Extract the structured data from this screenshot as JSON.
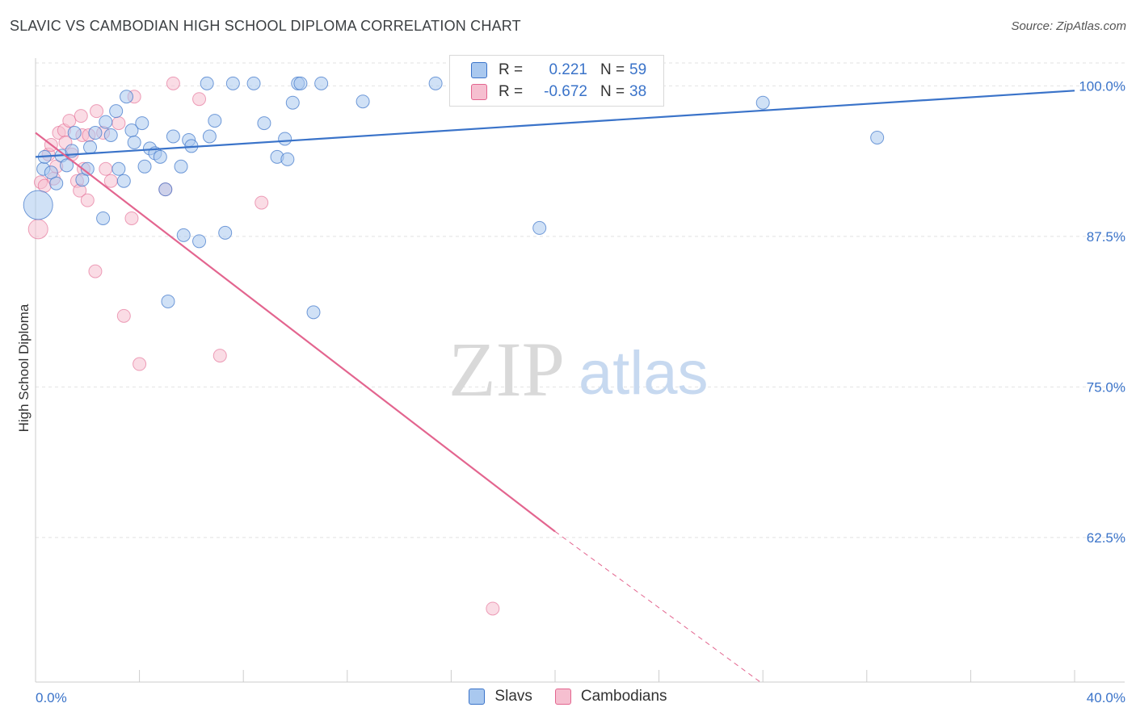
{
  "title": "SLAVIC VS CAMBODIAN HIGH SCHOOL DIPLOMA CORRELATION CHART",
  "source": "Source: ZipAtlas.com",
  "watermark": {
    "zip": "ZIP",
    "atlas": "atlas"
  },
  "colors": {
    "slavs": "#3a73c9",
    "slavs_fill": "#a9c8ef",
    "cambodians": "#e3658f",
    "cambodians_fill": "#f6bfd0",
    "grid": "#e2e2e2",
    "axis_text": "#3a73c9"
  },
  "legend": {
    "slavs": {
      "r_label": "R =",
      "r_value": "0.221",
      "n_label": "N =",
      "n_value": "59"
    },
    "cambodians": {
      "r_label": "R =",
      "r_value": "-0.672",
      "n_label": "N =",
      "n_value": "38"
    }
  },
  "bottom_legend": {
    "slavs": "Slavs",
    "cambodians": "Cambodians"
  },
  "chart_data": {
    "type": "scatter",
    "title": "SLAVIC VS CAMBODIAN HIGH SCHOOL DIPLOMA CORRELATION CHART",
    "xlabel": "",
    "ylabel": "High School Diploma",
    "xlim": [
      0,
      40
    ],
    "ylim": [
      50.5,
      102.3
    ],
    "x_tick_labels": [
      "0.0%",
      "40.0%"
    ],
    "y_ticks": [
      62.5,
      75.0,
      87.5,
      100.0
    ],
    "y_tick_labels": [
      "62.5%",
      "75.0%",
      "87.5%",
      "100.0%"
    ],
    "grid": true,
    "series": [
      {
        "name": "Slavs",
        "trend": {
          "x0": 0,
          "y0": 94.1,
          "x1": 40,
          "y1": 99.6
        },
        "points": [
          [
            0.1,
            90.1,
            3
          ],
          [
            0.3,
            93.1,
            1
          ],
          [
            0.35,
            94.1,
            1
          ],
          [
            0.6,
            92.8,
            1
          ],
          [
            0.8,
            91.9,
            1
          ],
          [
            1.0,
            94.2,
            1
          ],
          [
            1.2,
            93.4,
            1
          ],
          [
            1.4,
            94.6,
            1
          ],
          [
            1.5,
            96.1,
            1
          ],
          [
            1.8,
            92.2,
            1
          ],
          [
            2.0,
            93.1,
            1
          ],
          [
            2.1,
            94.9,
            1
          ],
          [
            2.3,
            96.1,
            1
          ],
          [
            2.6,
            89.0,
            1
          ],
          [
            2.7,
            97.0,
            1
          ],
          [
            2.9,
            95.9,
            1
          ],
          [
            3.1,
            97.9,
            1
          ],
          [
            3.2,
            93.1,
            1
          ],
          [
            3.4,
            92.1,
            1
          ],
          [
            3.5,
            99.1,
            1
          ],
          [
            3.7,
            96.3,
            1
          ],
          [
            3.8,
            95.3,
            1
          ],
          [
            4.1,
            96.9,
            1
          ],
          [
            4.2,
            93.3,
            1
          ],
          [
            4.4,
            94.8,
            1
          ],
          [
            4.6,
            94.4,
            1
          ],
          [
            4.8,
            94.1,
            1
          ],
          [
            5.0,
            91.4,
            1
          ],
          [
            5.1,
            82.1,
            1
          ],
          [
            5.3,
            95.8,
            1
          ],
          [
            5.6,
            93.3,
            1
          ],
          [
            5.7,
            87.6,
            1
          ],
          [
            5.9,
            95.5,
            1
          ],
          [
            6.0,
            95.0,
            1
          ],
          [
            6.3,
            87.1,
            1
          ],
          [
            6.6,
            100.2,
            1
          ],
          [
            6.7,
            95.8,
            1
          ],
          [
            6.9,
            97.1,
            1
          ],
          [
            7.3,
            87.8,
            1
          ],
          [
            7.6,
            100.2,
            1
          ],
          [
            8.4,
            100.2,
            1
          ],
          [
            8.8,
            96.9,
            1
          ],
          [
            9.3,
            94.1,
            1
          ],
          [
            9.6,
            95.6,
            1
          ],
          [
            9.7,
            93.9,
            1
          ],
          [
            9.9,
            98.6,
            1
          ],
          [
            10.1,
            100.2,
            1
          ],
          [
            10.2,
            100.2,
            1
          ],
          [
            10.7,
            81.2,
            1
          ],
          [
            11.0,
            100.2,
            1
          ],
          [
            12.6,
            98.7,
            1
          ],
          [
            15.4,
            100.2,
            1
          ],
          [
            19.4,
            88.2,
            1
          ],
          [
            28.0,
            98.6,
            1
          ],
          [
            32.4,
            95.7,
            1
          ]
        ]
      },
      {
        "name": "Cambodians",
        "trend": {
          "x0": 0,
          "y0": 96.1,
          "x1": 20,
          "y1": 63.0
        },
        "trend_dashed": {
          "x0": 20,
          "y0": 63.0,
          "x1": 27.9,
          "y1": 50.5
        },
        "points": [
          [
            0.1,
            88.1,
            2
          ],
          [
            0.2,
            92.0,
            1
          ],
          [
            0.35,
            91.7,
            1
          ],
          [
            0.5,
            94.3,
            1
          ],
          [
            0.6,
            95.1,
            1
          ],
          [
            0.7,
            92.3,
            1
          ],
          [
            0.8,
            93.3,
            1
          ],
          [
            0.9,
            96.1,
            1
          ],
          [
            1.1,
            96.3,
            1
          ],
          [
            1.15,
            95.3,
            1
          ],
          [
            1.3,
            97.1,
            1
          ],
          [
            1.4,
            94.3,
            1
          ],
          [
            1.6,
            92.1,
            1
          ],
          [
            1.7,
            91.3,
            1
          ],
          [
            1.75,
            97.5,
            1
          ],
          [
            1.8,
            95.9,
            1
          ],
          [
            1.85,
            93.1,
            1
          ],
          [
            2.0,
            90.5,
            1
          ],
          [
            2.05,
            95.9,
            1
          ],
          [
            2.3,
            84.6,
            1
          ],
          [
            2.35,
            97.9,
            1
          ],
          [
            2.6,
            96.1,
            1
          ],
          [
            2.7,
            93.1,
            1
          ],
          [
            2.9,
            92.1,
            1
          ],
          [
            3.2,
            96.9,
            1
          ],
          [
            3.4,
            80.9,
            1
          ],
          [
            3.7,
            89.0,
            1
          ],
          [
            3.8,
            99.1,
            1
          ],
          [
            4.0,
            76.9,
            1
          ],
          [
            5.0,
            91.4,
            1
          ],
          [
            5.3,
            100.2,
            1
          ],
          [
            6.3,
            98.9,
            1
          ],
          [
            7.1,
            77.6,
            1
          ],
          [
            8.7,
            90.3,
            1
          ],
          [
            17.6,
            56.6,
            1
          ]
        ]
      }
    ]
  }
}
